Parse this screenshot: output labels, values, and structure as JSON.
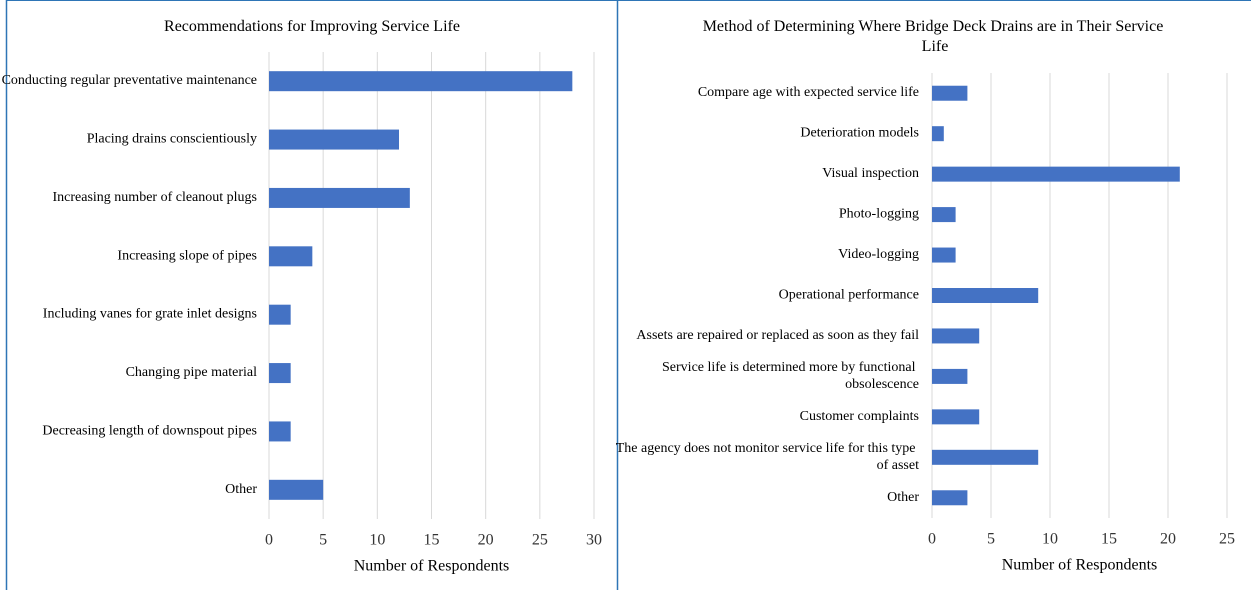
{
  "chart_data": [
    {
      "type": "barh",
      "title": "Recommendations for Improving Service Life",
      "categories": [
        "Conducting regular preventative maintenance",
        "Placing drains conscientiously",
        "Increasing number of cleanout plugs",
        "Increasing slope of pipes",
        "Including vanes for grate inlet designs",
        "Changing pipe material",
        "Decreasing length of downspout pipes",
        "Other"
      ],
      "values": [
        28,
        12,
        13,
        4,
        2,
        2,
        2,
        5
      ],
      "color": "#4472c4",
      "xlabel": "Number of Respondents",
      "xlim": [
        0,
        30
      ],
      "xticks": [
        0,
        5,
        10,
        15,
        20,
        25,
        30
      ],
      "grid": true
    },
    {
      "type": "barh",
      "title": "Method of Determining Where Bridge Deck Drains are in Their Service Life",
      "categories": [
        "Compare age with expected service life",
        "Deterioration models",
        "Visual inspection",
        "Photo-logging",
        "Video-logging",
        "Operational performance",
        "Assets are repaired or replaced as soon as they fail",
        "Service life is determined more by functional obsolescence",
        "Customer complaints",
        "The agency does not monitor service life for this type of asset",
        "Other"
      ],
      "values": [
        3,
        1,
        21,
        2,
        2,
        9,
        4,
        3,
        4,
        9,
        3
      ],
      "color": "#4472c4",
      "xlabel": "Number of Respondents",
      "xlim": [
        0,
        25
      ],
      "xticks": [
        0,
        5,
        10,
        15,
        20,
        25
      ],
      "grid": true
    }
  ]
}
